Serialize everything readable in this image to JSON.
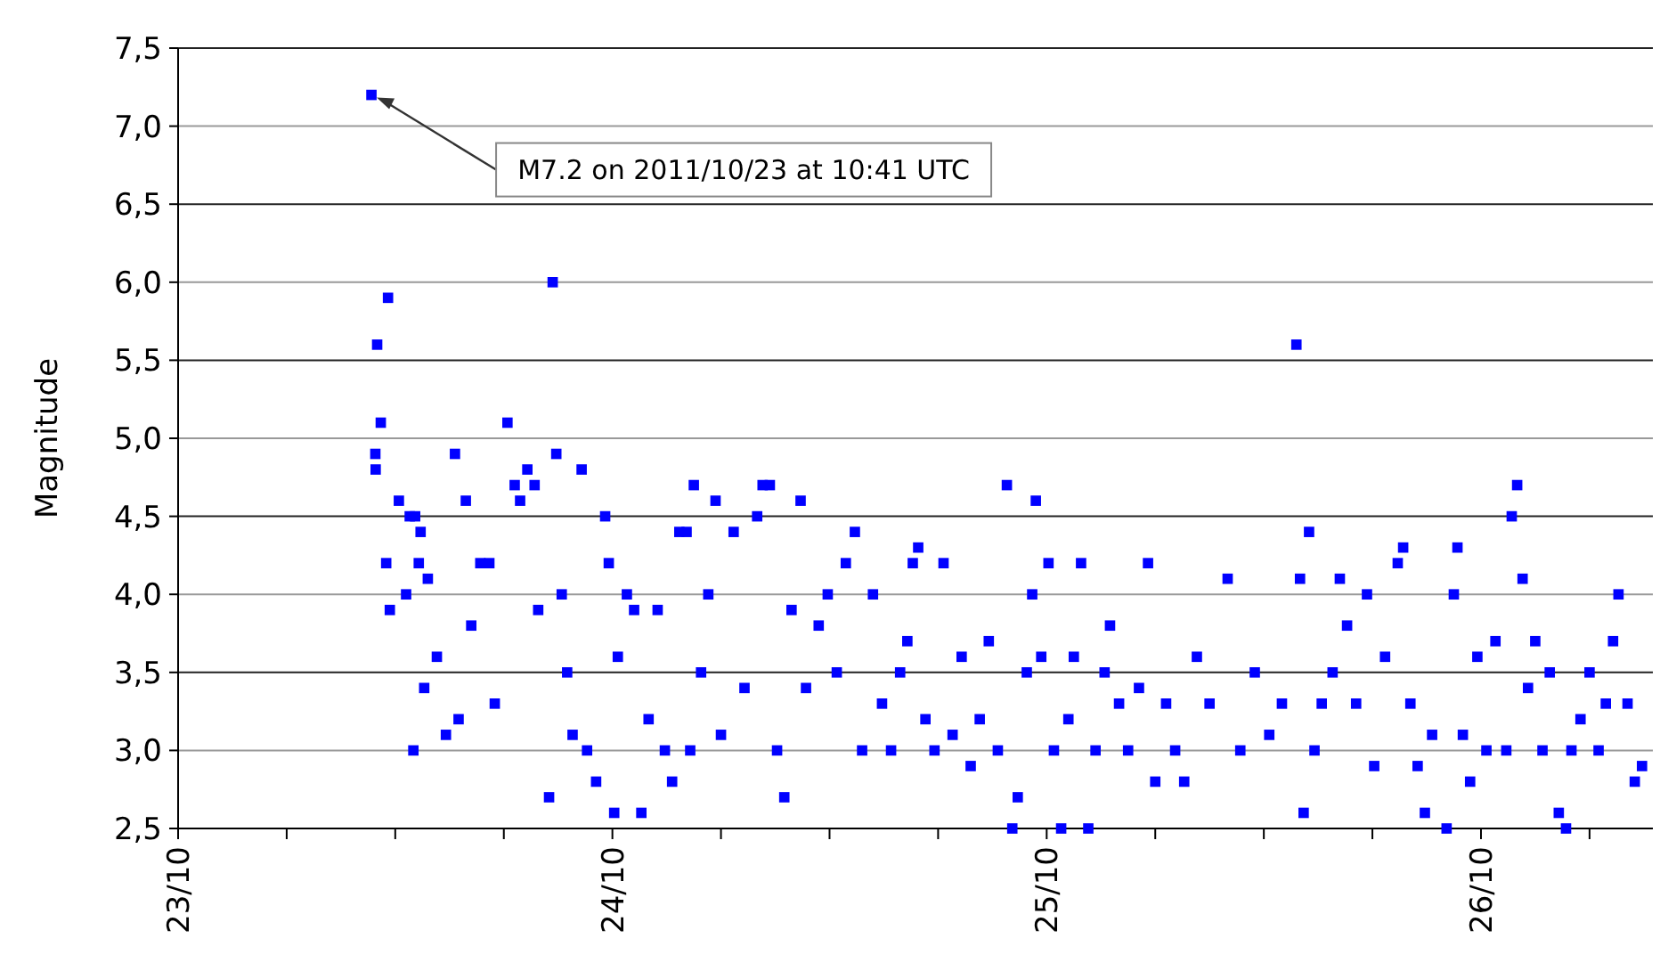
{
  "chart_data": {
    "type": "scatter",
    "ylabel": "Magnitude",
    "marker": "square",
    "grid": "y",
    "annotations": [
      {
        "text": "M7.2 on 2011/10/23 at 10:41 UTC",
        "x": "2011-10-23T10:41",
        "y": 7.2
      }
    ],
    "xlim": [
      "2011-10-23T00:00",
      "2011-10-26T09:30"
    ],
    "xticks": [
      {
        "value": "2011-10-23T00:00",
        "label": "23/10"
      },
      {
        "value": "2011-10-23T06:00",
        "label": null
      },
      {
        "value": "2011-10-23T12:00",
        "label": null
      },
      {
        "value": "2011-10-23T18:00",
        "label": null
      },
      {
        "value": "2011-10-24T00:00",
        "label": "24/10"
      },
      {
        "value": "2011-10-24T06:00",
        "label": null
      },
      {
        "value": "2011-10-24T12:00",
        "label": null
      },
      {
        "value": "2011-10-24T18:00",
        "label": null
      },
      {
        "value": "2011-10-25T00:00",
        "label": "25/10"
      },
      {
        "value": "2011-10-25T06:00",
        "label": null
      },
      {
        "value": "2011-10-25T12:00",
        "label": null
      },
      {
        "value": "2011-10-25T18:00",
        "label": null
      },
      {
        "value": "2011-10-26T00:00",
        "label": "26/10"
      },
      {
        "value": "2011-10-26T06:00",
        "label": null
      }
    ],
    "ylim": [
      2.5,
      7.5
    ],
    "yticks": [
      {
        "value": 2.5,
        "label": "2,5"
      },
      {
        "value": 3,
        "label": "3,0"
      },
      {
        "value": 3.5,
        "label": "3,5"
      },
      {
        "value": 4,
        "label": "4,0"
      },
      {
        "value": 4.5,
        "label": "4,5"
      },
      {
        "value": 5,
        "label": "5,0"
      },
      {
        "value": 5.5,
        "label": "5,5"
      },
      {
        "value": 6,
        "label": "6,0"
      },
      {
        "value": 6.5,
        "label": "6,5"
      },
      {
        "value": 7,
        "label": "7,0"
      },
      {
        "value": 7.5,
        "label": "7,5"
      }
    ],
    "series": [
      {
        "color": "#0000ff",
        "x": [
          "2011-10-23T10:41",
          "2011-10-23T11:00",
          "2011-10-23T11:12",
          "2011-10-23T11:36",
          "2011-10-23T10:54",
          "2011-10-23T10:55",
          "2011-10-23T11:30",
          "2011-10-23T11:42",
          "2011-10-23T12:12",
          "2011-10-23T12:36",
          "2011-10-23T12:48",
          "2011-10-23T13:06",
          "2011-10-23T13:24",
          "2011-10-23T13:18",
          "2011-10-23T13:48",
          "2011-10-23T13:00",
          "2011-10-23T13:36",
          "2011-10-23T14:18",
          "2011-10-23T14:48",
          "2011-10-23T15:18",
          "2011-10-23T15:30",
          "2011-10-23T15:54",
          "2011-10-23T16:12",
          "2011-10-23T16:42",
          "2011-10-23T17:12",
          "2011-10-23T17:30",
          "2011-10-23T18:12",
          "2011-10-23T18:36",
          "2011-10-23T18:54",
          "2011-10-23T19:18",
          "2011-10-23T19:42",
          "2011-10-23T19:54",
          "2011-10-23T20:42",
          "2011-10-23T20:54",
          "2011-10-23T21:12",
          "2011-10-23T20:30",
          "2011-10-23T21:30",
          "2011-10-23T21:48",
          "2011-10-23T22:18",
          "2011-10-23T22:36",
          "2011-10-23T23:06",
          "2011-10-23T23:36",
          "2011-10-23T23:48",
          "2011-10-24T00:06",
          "2011-10-24T00:18",
          "2011-10-24T00:48",
          "2011-10-24T01:12",
          "2011-10-24T01:36",
          "2011-10-24T02:00",
          "2011-10-24T02:30",
          "2011-10-24T02:54",
          "2011-10-24T03:18",
          "2011-10-24T03:42",
          "2011-10-24T04:06",
          "2011-10-24T04:18",
          "2011-10-24T04:30",
          "2011-10-24T04:54",
          "2011-10-24T05:18",
          "2011-10-24T05:42",
          "2011-10-24T06:00",
          "2011-10-24T06:42",
          "2011-10-24T07:18",
          "2011-10-24T08:00",
          "2011-10-24T08:18",
          "2011-10-24T08:42",
          "2011-10-24T09:06",
          "2011-10-24T09:30",
          "2011-10-24T09:54",
          "2011-10-24T10:24",
          "2011-10-24T10:42",
          "2011-10-24T11:24",
          "2011-10-24T11:54",
          "2011-10-24T12:24",
          "2011-10-24T12:54",
          "2011-10-24T13:24",
          "2011-10-24T13:48",
          "2011-10-24T14:24",
          "2011-10-24T14:54",
          "2011-10-24T15:24",
          "2011-10-24T15:54",
          "2011-10-24T16:18",
          "2011-10-24T16:36",
          "2011-10-24T16:54",
          "2011-10-24T17:18",
          "2011-10-24T17:48",
          "2011-10-24T18:18",
          "2011-10-24T18:48",
          "2011-10-24T19:18",
          "2011-10-24T19:48",
          "2011-10-24T20:18",
          "2011-10-24T20:48",
          "2011-10-24T21:18",
          "2011-10-24T21:48",
          "2011-10-24T22:06",
          "2011-10-24T22:24",
          "2011-10-24T22:54",
          "2011-10-24T23:12",
          "2011-10-24T23:24",
          "2011-10-24T23:42",
          "2011-10-25T00:06",
          "2011-10-25T00:24",
          "2011-10-25T00:48",
          "2011-10-25T01:12",
          "2011-10-25T01:30",
          "2011-10-25T01:54",
          "2011-10-25T02:18",
          "2011-10-25T02:42",
          "2011-10-25T03:12",
          "2011-10-25T03:30",
          "2011-10-25T04:00",
          "2011-10-25T04:30",
          "2011-10-25T05:06",
          "2011-10-25T05:36",
          "2011-10-25T06:00",
          "2011-10-25T06:36",
          "2011-10-25T07:06",
          "2011-10-25T07:36",
          "2011-10-25T08:18",
          "2011-10-25T09:00",
          "2011-10-25T10:00",
          "2011-10-25T10:42",
          "2011-10-25T11:30",
          "2011-10-25T12:18",
          "2011-10-25T13:00",
          "2011-10-25T13:48",
          "2011-10-25T14:00",
          "2011-10-25T14:12",
          "2011-10-25T14:30",
          "2011-10-25T14:48",
          "2011-10-25T15:12",
          "2011-10-25T15:48",
          "2011-10-25T16:12",
          "2011-10-25T16:36",
          "2011-10-25T17:06",
          "2011-10-25T17:42",
          "2011-10-25T18:06",
          "2011-10-25T18:42",
          "2011-10-25T19:24",
          "2011-10-25T19:42",
          "2011-10-25T20:06",
          "2011-10-25T20:30",
          "2011-10-25T20:54",
          "2011-10-25T21:18",
          "2011-10-25T22:06",
          "2011-10-25T22:30",
          "2011-10-25T22:42",
          "2011-10-25T23:00",
          "2011-10-25T23:24",
          "2011-10-25T23:48",
          "2011-10-26T00:18",
          "2011-10-26T00:48",
          "2011-10-26T01:24",
          "2011-10-26T01:42",
          "2011-10-26T02:00",
          "2011-10-26T02:18",
          "2011-10-26T02:36",
          "2011-10-26T03:00",
          "2011-10-26T03:24",
          "2011-10-26T03:48",
          "2011-10-26T04:18",
          "2011-10-26T04:42",
          "2011-10-26T05:00",
          "2011-10-26T05:30",
          "2011-10-26T06:00",
          "2011-10-26T06:30",
          "2011-10-26T06:54",
          "2011-10-26T07:18",
          "2011-10-26T07:36",
          "2011-10-26T08:06",
          "2011-10-26T08:30",
          "2011-10-26T08:54"
        ],
        "values": [
          7.2,
          5.6,
          5.1,
          5.9,
          4.9,
          4.8,
          4.2,
          3.9,
          4.6,
          4.0,
          4.5,
          4.5,
          4.4,
          4.2,
          4.1,
          3.0,
          3.4,
          3.6,
          3.1,
          4.9,
          3.2,
          4.6,
          3.8,
          4.2,
          4.2,
          3.3,
          5.1,
          4.7,
          4.6,
          4.8,
          4.7,
          3.9,
          6.0,
          4.9,
          4.0,
          2.7,
          3.5,
          3.1,
          4.8,
          3.0,
          2.8,
          4.5,
          4.2,
          2.6,
          3.6,
          4.0,
          3.9,
          2.6,
          3.2,
          3.9,
          3.0,
          2.8,
          4.4,
          4.4,
          3.0,
          4.7,
          3.5,
          4.0,
          4.6,
          3.1,
          4.4,
          3.4,
          4.5,
          4.7,
          4.7,
          3.0,
          2.7,
          3.9,
          4.6,
          3.4,
          3.8,
          4.0,
          3.5,
          4.2,
          4.4,
          3.0,
          4.0,
          3.3,
          3.0,
          3.5,
          3.7,
          4.2,
          4.3,
          3.2,
          3.0,
          4.2,
          3.1,
          3.6,
          2.9,
          3.2,
          3.7,
          3.0,
          4.7,
          2.5,
          2.7,
          3.5,
          4.0,
          4.6,
          3.6,
          4.2,
          3.0,
          2.5,
          3.2,
          3.6,
          4.2,
          2.5,
          3.0,
          3.5,
          3.8,
          3.3,
          3.0,
          3.4,
          4.2,
          2.8,
          3.3,
          3.0,
          2.8,
          3.6,
          3.3,
          4.1,
          3.0,
          3.5,
          3.1,
          3.3,
          5.6,
          4.1,
          2.6,
          4.4,
          3.0,
          3.3,
          3.5,
          4.1,
          3.8,
          3.3,
          4.0,
          2.9,
          3.6,
          4.2,
          4.3,
          3.3,
          2.9,
          2.6,
          3.1,
          2.5,
          4.0,
          4.3,
          3.1,
          2.8,
          3.6,
          3.0,
          3.7,
          3.0,
          4.5,
          4.7,
          4.1,
          3.4,
          3.7,
          3.0,
          3.5,
          2.6,
          2.5,
          3.0,
          3.2,
          3.5,
          3.0,
          3.3,
          3.7,
          4.0,
          3.3,
          2.8,
          2.9
        ]
      }
    ]
  }
}
